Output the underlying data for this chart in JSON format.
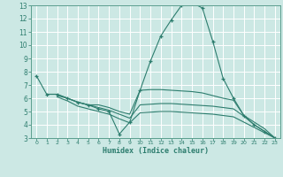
{
  "xlabel": "Humidex (Indice chaleur)",
  "xlim": [
    -0.5,
    23.5
  ],
  "ylim": [
    3,
    13
  ],
  "yticks": [
    3,
    4,
    5,
    6,
    7,
    8,
    9,
    10,
    11,
    12,
    13
  ],
  "xticks": [
    0,
    1,
    2,
    3,
    4,
    5,
    6,
    7,
    8,
    9,
    10,
    11,
    12,
    13,
    14,
    15,
    16,
    17,
    18,
    19,
    20,
    21,
    22,
    23
  ],
  "bg_color": "#cce8e4",
  "grid_color": "#ffffff",
  "line_color": "#2d7d6e",
  "spine_color": "#5a9e8e",
  "lines": [
    {
      "x": [
        0,
        1,
        2,
        3,
        4,
        5,
        6,
        7,
        8,
        9,
        10,
        11,
        12,
        13,
        14,
        15,
        16,
        17,
        18,
        19,
        20,
        21,
        22,
        23
      ],
      "y": [
        7.7,
        6.3,
        6.3,
        6.0,
        5.7,
        5.5,
        5.2,
        5.0,
        3.3,
        4.2,
        6.6,
        8.8,
        10.7,
        11.9,
        13.0,
        13.2,
        12.8,
        10.3,
        7.5,
        6.0,
        4.7,
        4.0,
        3.5,
        3.0
      ],
      "has_markers": true
    },
    {
      "x": [
        1,
        2,
        3,
        4,
        5,
        6,
        7,
        8,
        9,
        10,
        11,
        12,
        13,
        14,
        15,
        16,
        17,
        18,
        19,
        20,
        21,
        22,
        23
      ],
      "y": [
        6.3,
        6.3,
        6.0,
        5.7,
        5.5,
        5.5,
        5.3,
        5.0,
        4.8,
        6.6,
        6.65,
        6.65,
        6.6,
        6.55,
        6.5,
        6.4,
        6.2,
        6.0,
        5.85,
        4.7,
        4.2,
        3.7,
        3.0
      ],
      "has_markers": false
    },
    {
      "x": [
        2,
        3,
        4,
        5,
        6,
        7,
        8,
        9,
        10,
        11,
        12,
        13,
        14,
        15,
        16,
        17,
        18,
        19,
        20,
        21,
        22,
        23
      ],
      "y": [
        6.2,
        6.0,
        5.7,
        5.5,
        5.3,
        5.1,
        4.8,
        4.5,
        5.5,
        5.55,
        5.6,
        5.6,
        5.55,
        5.5,
        5.45,
        5.4,
        5.3,
        5.2,
        4.65,
        4.0,
        3.5,
        3.0
      ],
      "has_markers": false
    },
    {
      "x": [
        2,
        3,
        4,
        5,
        6,
        7,
        8,
        9,
        10,
        11,
        12,
        13,
        14,
        15,
        16,
        17,
        18,
        19,
        20,
        21,
        22,
        23
      ],
      "y": [
        6.1,
        5.8,
        5.4,
        5.2,
        5.0,
        4.8,
        4.45,
        4.15,
        4.9,
        4.95,
        5.0,
        5.0,
        4.95,
        4.9,
        4.85,
        4.8,
        4.7,
        4.6,
        4.2,
        3.8,
        3.4,
        3.0
      ],
      "has_markers": false
    }
  ]
}
